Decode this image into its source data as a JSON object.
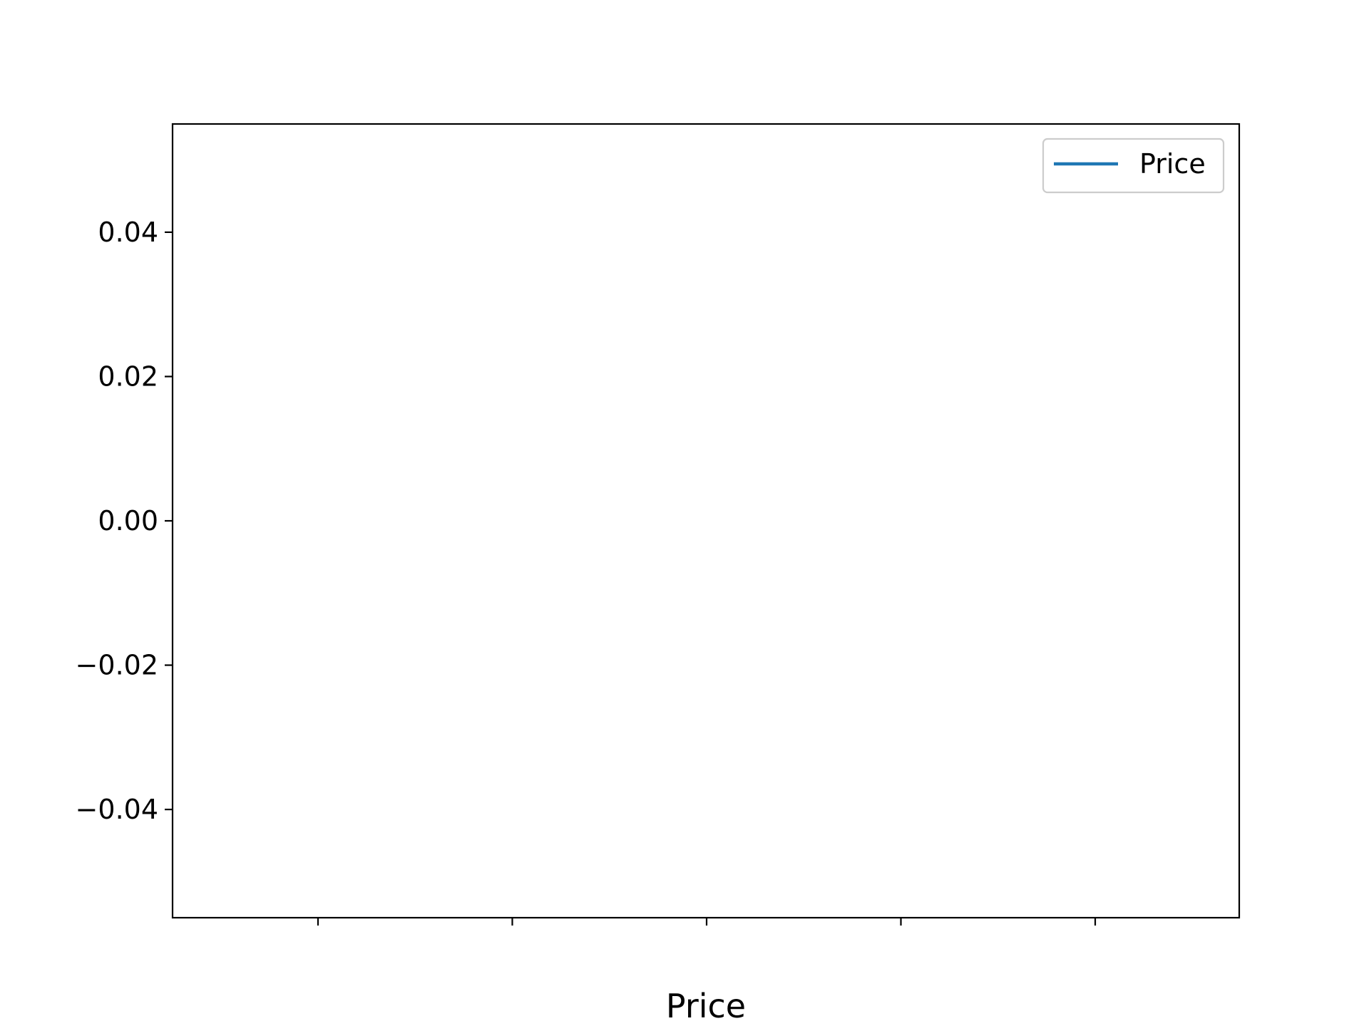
{
  "chart_data": {
    "type": "line",
    "title": "",
    "xlabel": "Price",
    "ylabel": "",
    "x": [],
    "series": [
      {
        "name": "Price",
        "values": [],
        "color": "#1f77b4"
      }
    ],
    "ylim": [
      -0.055,
      0.055
    ],
    "yticks": [
      0.04,
      0.02,
      0.0,
      -0.02,
      -0.04
    ],
    "ytick_labels": [
      "0.04",
      "0.02",
      "0.00",
      "−0.02",
      "−0.04"
    ],
    "xtick_count": 5,
    "xtick_labels": [
      "",
      "",
      "",
      "",
      ""
    ],
    "grid": false,
    "legend": "top-right"
  }
}
